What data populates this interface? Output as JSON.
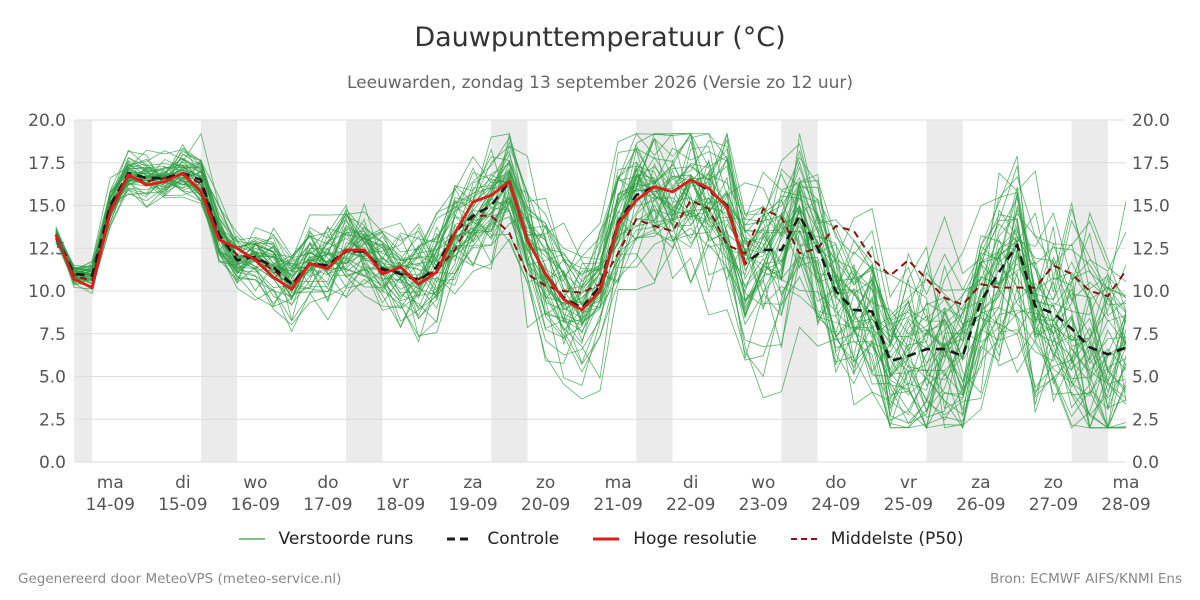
{
  "colors": {
    "ensemble": "#2e9c42",
    "control": "#1a1a1a",
    "hires": "#e01b1b",
    "median": "#8b1212",
    "band": "#ebebeb",
    "grid": "#dddddd"
  },
  "chart_data": {
    "type": "line",
    "title": "Dauwpunttemperatuur (°C)",
    "subtitle": "Leeuwarden, zondag 13 september 2026 (Versie zo 12 uur)",
    "x_start": "2026-09-14T00:00",
    "x_end": "2026-09-28T12:00",
    "ylim": [
      0,
      20
    ],
    "yticks": [
      "0.0",
      "2.5",
      "5.0",
      "7.5",
      "10.0",
      "12.5",
      "15.0",
      "17.5",
      "20.0"
    ],
    "xticks": [
      {
        "day": "ma",
        "date": "14-09"
      },
      {
        "day": "di",
        "date": "15-09"
      },
      {
        "day": "wo",
        "date": "16-09"
      },
      {
        "day": "do",
        "date": "17-09"
      },
      {
        "day": "vr",
        "date": "18-09"
      },
      {
        "day": "za",
        "date": "19-09"
      },
      {
        "day": "zo",
        "date": "20-09"
      },
      {
        "day": "ma",
        "date": "21-09"
      },
      {
        "day": "di",
        "date": "22-09"
      },
      {
        "day": "wo",
        "date": "23-09"
      },
      {
        "day": "do",
        "date": "24-09"
      },
      {
        "day": "vr",
        "date": "25-09"
      },
      {
        "day": "za",
        "date": "26-09"
      },
      {
        "day": "zo",
        "date": "27-09"
      },
      {
        "day": "ma",
        "date": "28-09"
      }
    ],
    "grid": true,
    "legend_position": "bottom",
    "shaded_periods": "alternating nights (18:00–06:00)",
    "series": [
      {
        "name": "Controle",
        "style": "dashed",
        "x": [
          "2026-09-13T18:00",
          "2026-09-14T00:00",
          "2026-09-14T06:00",
          "2026-09-14T12:00",
          "2026-09-14T18:00",
          "2026-09-15T00:00",
          "2026-09-15T06:00",
          "2026-09-15T12:00",
          "2026-09-15T18:00",
          "2026-09-16T00:00",
          "2026-09-16T06:00",
          "2026-09-16T12:00",
          "2026-09-16T18:00",
          "2026-09-17T00:00",
          "2026-09-17T06:00",
          "2026-09-17T12:00",
          "2026-09-17T18:00",
          "2026-09-18T00:00",
          "2026-09-18T06:00",
          "2026-09-18T12:00",
          "2026-09-18T18:00",
          "2026-09-19T00:00",
          "2026-09-19T06:00",
          "2026-09-19T12:00",
          "2026-09-19T18:00",
          "2026-09-20T00:00",
          "2026-09-20T06:00",
          "2026-09-20T12:00",
          "2026-09-20T18:00",
          "2026-09-21T00:00",
          "2026-09-21T06:00",
          "2026-09-21T12:00",
          "2026-09-21T18:00",
          "2026-09-22T00:00",
          "2026-09-22T06:00",
          "2026-09-22T12:00",
          "2026-09-22T18:00",
          "2026-09-23T00:00",
          "2026-09-23T06:00",
          "2026-09-23T12:00",
          "2026-09-23T18:00",
          "2026-09-24T00:00",
          "2026-09-24T06:00",
          "2026-09-24T12:00",
          "2026-09-24T18:00",
          "2026-09-25T00:00",
          "2026-09-25T06:00",
          "2026-09-25T12:00",
          "2026-09-25T18:00",
          "2026-09-26T00:00",
          "2026-09-26T06:00",
          "2026-09-26T12:00",
          "2026-09-26T18:00",
          "2026-09-27T00:00",
          "2026-09-27T06:00",
          "2026-09-27T12:00",
          "2026-09-27T18:00",
          "2026-09-28T00:00",
          "2026-09-28T06:00",
          "2026-09-28T12:00"
        ],
        "values": [
          13.3,
          11.0,
          10.9,
          15.0,
          16.9,
          16.6,
          16.6,
          16.9,
          16.5,
          13.3,
          11.8,
          12.0,
          11.4,
          10.4,
          11.6,
          11.5,
          12.4,
          12.3,
          11.3,
          11.0,
          10.6,
          11.4,
          13.5,
          14.4,
          15.0,
          16.4,
          13.0,
          11.0,
          9.6,
          9.0,
          10.3,
          14.0,
          15.6,
          16.1,
          15.8,
          16.5,
          15.9,
          15.0,
          11.6,
          12.4,
          12.4,
          14.4,
          12.5,
          10.0,
          8.9,
          8.8,
          5.9,
          6.2,
          6.6,
          6.6,
          6.2,
          9.4,
          11.1,
          12.7,
          9.1,
          8.7,
          7.8,
          6.7,
          6.3,
          6.7
        ]
      },
      {
        "name": "Hoge resolutie",
        "style": "solid",
        "x": [
          "2026-09-13T18:00",
          "2026-09-14T00:00",
          "2026-09-14T06:00",
          "2026-09-14T12:00",
          "2026-09-14T18:00",
          "2026-09-15T00:00",
          "2026-09-15T06:00",
          "2026-09-15T12:00",
          "2026-09-15T18:00",
          "2026-09-16T00:00",
          "2026-09-16T06:00",
          "2026-09-16T12:00",
          "2026-09-16T18:00",
          "2026-09-17T00:00",
          "2026-09-17T06:00",
          "2026-09-17T12:00",
          "2026-09-17T18:00",
          "2026-09-18T00:00",
          "2026-09-18T06:00",
          "2026-09-18T12:00",
          "2026-09-18T18:00",
          "2026-09-19T00:00",
          "2026-09-19T06:00",
          "2026-09-19T12:00",
          "2026-09-19T18:00",
          "2026-09-20T00:00",
          "2026-09-20T06:00",
          "2026-09-20T12:00",
          "2026-09-20T18:00",
          "2026-09-21T00:00",
          "2026-09-21T06:00",
          "2026-09-21T12:00",
          "2026-09-21T18:00",
          "2026-09-22T00:00",
          "2026-09-22T06:00",
          "2026-09-22T12:00",
          "2026-09-22T18:00",
          "2026-09-23T00:00",
          "2026-09-23T06:00"
        ],
        "values": [
          13.3,
          10.7,
          10.2,
          14.6,
          16.8,
          16.2,
          16.4,
          16.9,
          15.8,
          13.0,
          12.5,
          11.8,
          10.8,
          10.1,
          11.6,
          11.3,
          12.4,
          12.4,
          11.0,
          11.4,
          10.4,
          11.1,
          13.4,
          15.2,
          15.6,
          16.4,
          13.0,
          11.0,
          9.5,
          8.9,
          10.0,
          13.9,
          15.3,
          16.1,
          15.8,
          16.5,
          16.0,
          14.9,
          11.5
        ]
      },
      {
        "name": "Middelste (P50)",
        "style": "dashed",
        "x": [
          "2026-09-13T18:00",
          "2026-09-14T00:00",
          "2026-09-14T06:00",
          "2026-09-14T12:00",
          "2026-09-14T18:00",
          "2026-09-15T00:00",
          "2026-09-15T06:00",
          "2026-09-15T12:00",
          "2026-09-15T18:00",
          "2026-09-16T00:00",
          "2026-09-16T06:00",
          "2026-09-16T12:00",
          "2026-09-16T18:00",
          "2026-09-17T00:00",
          "2026-09-17T06:00",
          "2026-09-17T12:00",
          "2026-09-17T18:00",
          "2026-09-18T00:00",
          "2026-09-18T06:00",
          "2026-09-18T12:00",
          "2026-09-18T18:00",
          "2026-09-19T00:00",
          "2026-09-19T06:00",
          "2026-09-19T12:00",
          "2026-09-19T18:00",
          "2026-09-20T00:00",
          "2026-09-20T06:00",
          "2026-09-20T12:00",
          "2026-09-20T18:00",
          "2026-09-21T00:00",
          "2026-09-21T06:00",
          "2026-09-21T12:00",
          "2026-09-21T18:00",
          "2026-09-22T00:00",
          "2026-09-22T06:00",
          "2026-09-22T12:00",
          "2026-09-22T18:00",
          "2026-09-23T00:00",
          "2026-09-23T06:00",
          "2026-09-23T12:00",
          "2026-09-23T18:00",
          "2026-09-24T00:00",
          "2026-09-24T06:00",
          "2026-09-24T12:00",
          "2026-09-24T18:00",
          "2026-09-25T00:00",
          "2026-09-25T06:00",
          "2026-09-25T12:00",
          "2026-09-25T18:00",
          "2026-09-26T00:00",
          "2026-09-26T06:00",
          "2026-09-26T12:00",
          "2026-09-26T18:00",
          "2026-09-27T00:00",
          "2026-09-27T06:00",
          "2026-09-27T12:00",
          "2026-09-27T18:00",
          "2026-09-28T00:00",
          "2026-09-28T06:00",
          "2026-09-28T12:00"
        ],
        "values": [
          13.1,
          10.9,
          10.6,
          14.9,
          16.7,
          16.4,
          16.6,
          16.8,
          16.3,
          13.2,
          12.1,
          11.9,
          11.2,
          10.4,
          11.6,
          11.5,
          12.3,
          12.3,
          11.2,
          11.1,
          10.7,
          11.2,
          12.4,
          14.4,
          14.4,
          13.4,
          11.0,
          10.3,
          10.0,
          9.9,
          10.4,
          12.2,
          14.2,
          13.8,
          13.5,
          15.3,
          14.8,
          12.7,
          12.2,
          14.8,
          14.3,
          12.2,
          12.5,
          13.8,
          13.5,
          11.9,
          10.9,
          11.8,
          10.7,
          9.6,
          9.2,
          10.4,
          10.2,
          10.2,
          10.2,
          11.5,
          11.0,
          10.0,
          9.7,
          11.2
        ]
      }
    ],
    "ensemble": {
      "name": "Verstoorde runs",
      "x_start": "2026-09-13T18:00",
      "x_end": "2026-09-28T12:00",
      "step_hours": 6,
      "members": 50,
      "spread_approx": "starts within about 1 °C of the control, widening to roughly 3–19 °C by 27–28 September"
    }
  },
  "legend": [
    {
      "label": "Verstoorde runs",
      "key": "ensemble"
    },
    {
      "label": "Controle",
      "key": "control"
    },
    {
      "label": "Hoge resolutie",
      "key": "hires"
    },
    {
      "label": "Middelste (P50)",
      "key": "median"
    }
  ],
  "footer": {
    "left": "Gegenereerd door MeteoVPS (meteo-service.nl)",
    "right": "Bron: ECMWF AIFS/KNMI Ens"
  }
}
